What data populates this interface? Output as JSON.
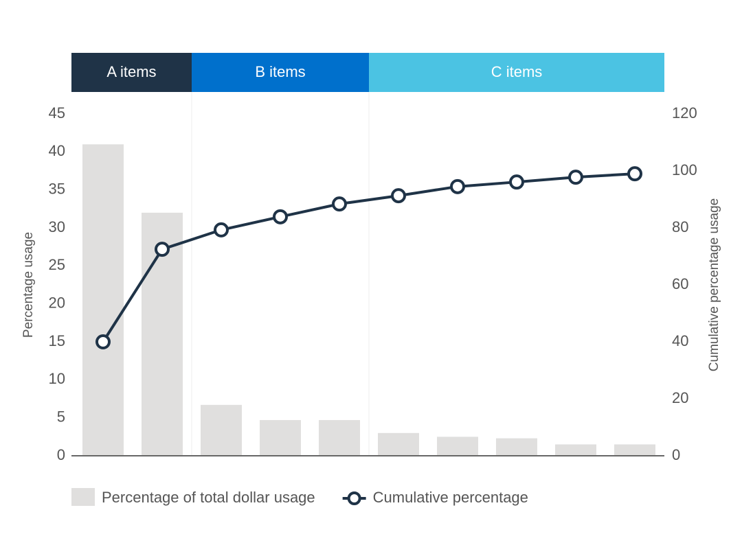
{
  "chart_data": {
    "type": "pareto",
    "groups": [
      {
        "label": "A items",
        "count": 2,
        "color": "#1f3347"
      },
      {
        "label": "B items",
        "count": 3,
        "color": "#0070cc"
      },
      {
        "label": "C items",
        "count": 5,
        "color": "#4bc3e3"
      }
    ],
    "categories": [
      null,
      null,
      null,
      null,
      null,
      null,
      null,
      null,
      null,
      null
    ],
    "series": [
      {
        "name": "Percentage of total dollar usage",
        "type": "bar",
        "color": "#e0dfde",
        "values": [
          41,
          32,
          6.7,
          4.7,
          4.7,
          3.0,
          2.5,
          2.3,
          1.5,
          1.5
        ]
      },
      {
        "name": "Cumulative percentage",
        "type": "line",
        "axis": "y2",
        "color": "#1f3347",
        "values": [
          40,
          72.5,
          79.3,
          83.9,
          88.4,
          91.3,
          94.5,
          96.1,
          97.8,
          99
        ]
      }
    ],
    "y_label": "Percentage usage",
    "y2_label": "Cumulative percentage usage",
    "ylim": [
      0,
      45
    ],
    "yticks": [
      0,
      5,
      10,
      15,
      20,
      25,
      30,
      35,
      40,
      45
    ],
    "y2lim": [
      0,
      120
    ],
    "y2ticks": [
      0,
      20,
      40,
      60,
      80,
      100,
      120
    ],
    "legend": "bottom"
  }
}
